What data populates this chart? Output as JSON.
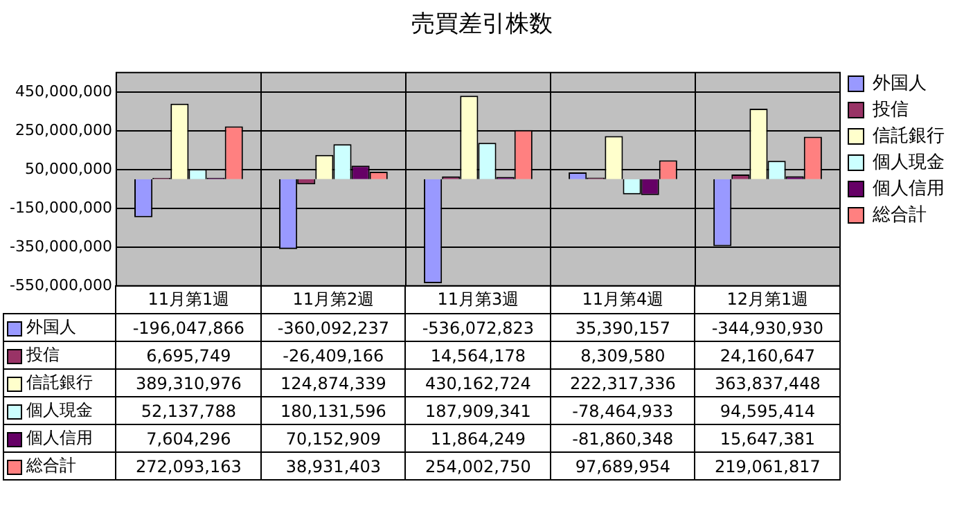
{
  "chart_data": {
    "type": "bar",
    "title": "売買差引株数",
    "categories": [
      "11月第1週",
      "11月第2週",
      "11月第3週",
      "11月第4週",
      "12月第1週"
    ],
    "series": [
      {
        "name": "外国人",
        "color": "#9999ff",
        "values": [
          -196047866,
          -360092237,
          -536072823,
          35390157,
          -344930930
        ],
        "value_labels": [
          "-196,047,866",
          "-360,092,237",
          "-536,072,823",
          "35,390,157",
          "-344,930,930"
        ]
      },
      {
        "name": "投信",
        "color": "#993366",
        "values": [
          6695749,
          -26409166,
          14564178,
          8309580,
          24160647
        ],
        "value_labels": [
          "6,695,749",
          "-26,409,166",
          "14,564,178",
          "8,309,580",
          "24,160,647"
        ]
      },
      {
        "name": "信託銀行",
        "color": "#ffffcc",
        "values": [
          389310976,
          124874339,
          430162724,
          222317336,
          363837448
        ],
        "value_labels": [
          "389,310,976",
          "124,874,339",
          "430,162,724",
          "222,317,336",
          "363,837,448"
        ]
      },
      {
        "name": "個人現金",
        "color": "#ccffff",
        "values": [
          52137788,
          180131596,
          187909341,
          -78464933,
          94595414
        ],
        "value_labels": [
          "52,137,788",
          "180,131,596",
          "187,909,341",
          "-78,464,933",
          "94,595,414"
        ]
      },
      {
        "name": "個人信用",
        "color": "#660066",
        "values": [
          7604296,
          70152909,
          11864249,
          -81860348,
          15647381
        ],
        "value_labels": [
          "7,604,296",
          "70,152,909",
          "11,864,249",
          "-81,860,348",
          "15,647,381"
        ]
      },
      {
        "name": "総合計",
        "color": "#ff8080",
        "values": [
          272093163,
          38931403,
          254002750,
          97689954,
          219061817
        ],
        "value_labels": [
          "272,093,163",
          "38,931,403",
          "254,002,750",
          "97,689,954",
          "219,061,817"
        ]
      }
    ],
    "ylim": [
      -550000000,
      550000000
    ],
    "yticks": [
      {
        "value": -550000000,
        "label": "-550,000,000"
      },
      {
        "value": -350000000,
        "label": "-350,000,000"
      },
      {
        "value": -150000000,
        "label": "-150,000,000"
      },
      {
        "value": 50000000,
        "label": "50,000,000"
      },
      {
        "value": 250000000,
        "label": "250,000,000"
      },
      {
        "value": 450000000,
        "label": "450,000,000"
      }
    ],
    "grid": true,
    "legend": "right"
  }
}
